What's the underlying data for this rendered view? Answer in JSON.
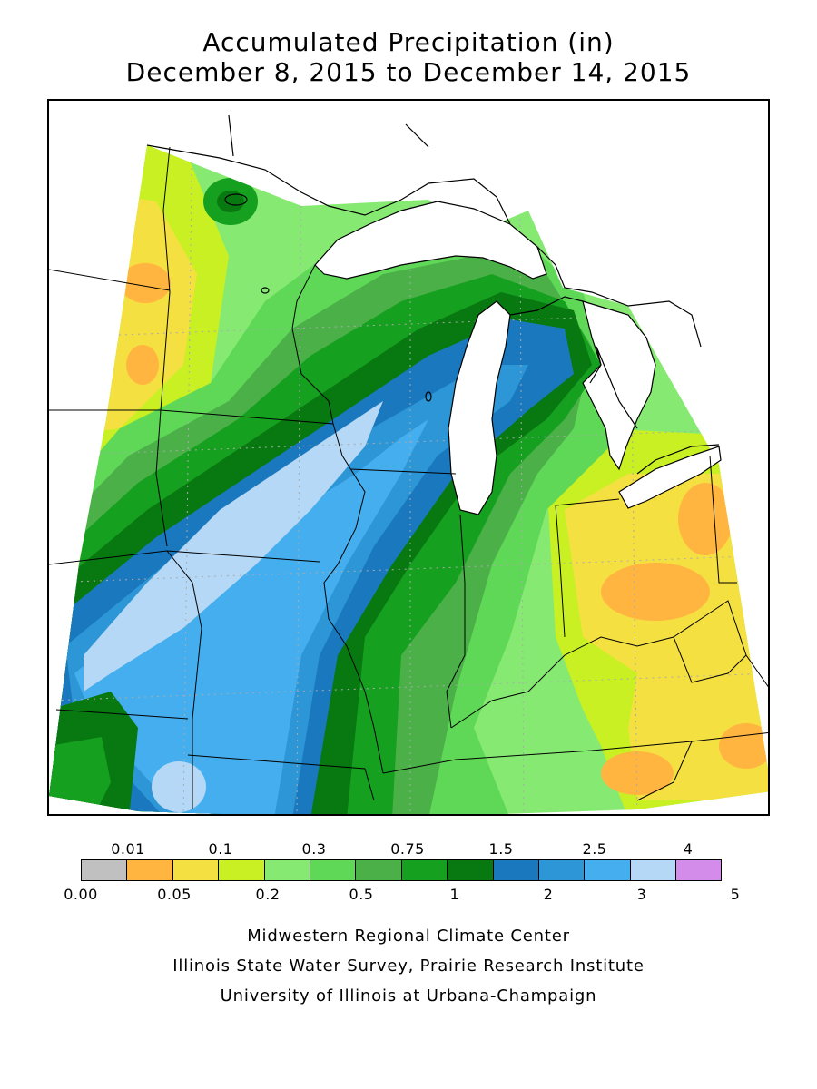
{
  "title": {
    "line1": "Accumulated Precipitation (in)",
    "line2": "December 8, 2015 to December 14, 2015"
  },
  "legend": {
    "labels_top": [
      "0.01",
      "0.1",
      "0.3",
      "0.75",
      "1.5",
      "2.5",
      "4"
    ],
    "labels_bottom": [
      "0.00",
      "0.05",
      "0.2",
      "0.5",
      "1",
      "2",
      "3",
      "5"
    ],
    "colors": [
      "#c0c0c0",
      "#ffb540",
      "#f5e042",
      "#c8f022",
      "#86ea72",
      "#5ed856",
      "#4bb048",
      "#16a020",
      "#087810",
      "#1a78be",
      "#2c96d6",
      "#44aeee",
      "#b4d8f6",
      "#d48ceb"
    ]
  },
  "map": {
    "land_color": "#ffffff",
    "lake_color": "#ffffff",
    "boundary_color": "#000000",
    "grid_color": "#aaaaaa"
  },
  "credits": {
    "line1": "Midwestern Regional Climate Center",
    "line2": "Illinois State Water Survey, Prairie Research Institute",
    "line3": "University of Illinois at Urbana-Champaign"
  }
}
